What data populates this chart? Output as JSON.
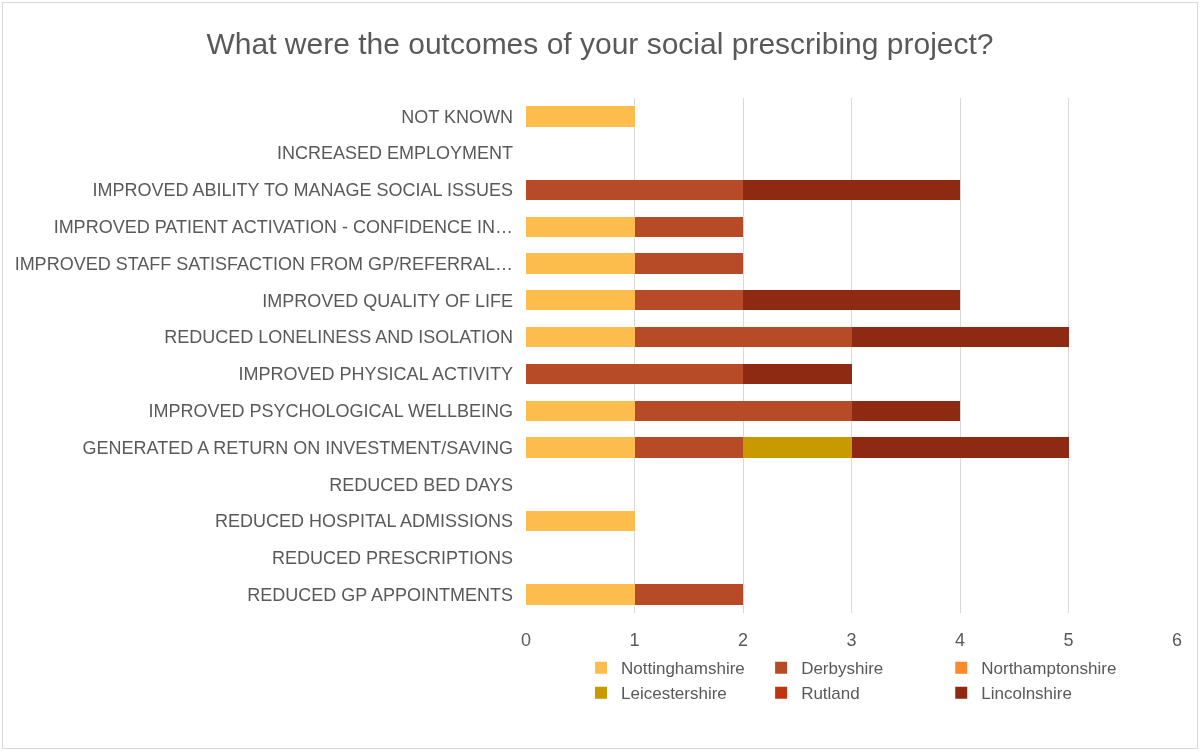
{
  "chart_data": {
    "type": "bar",
    "title": "What were the outcomes of your social prescribing project?",
    "orientation": "horizontal",
    "stacked": true,
    "categories": [
      "NOT KNOWN",
      "INCREASED EMPLOYMENT",
      "IMPROVED ABILITY TO MANAGE SOCIAL ISSUES",
      "IMPROVED PATIENT ACTIVATION - CONFIDENCE IN…",
      "IMPROVED STAFF SATISFACTION FROM GP/REFERRAL…",
      "IMPROVED QUALITY OF LIFE",
      "REDUCED LONELINESS AND ISOLATION",
      "IMPROVED PHYSICAL ACTIVITY",
      "IMPROVED PSYCHOLOGICAL WELLBEING",
      "GENERATED A RETURN ON INVESTMENT/SAVING",
      "REDUCED BED DAYS",
      "REDUCED HOSPITAL ADMISSIONS",
      "REDUCED PRESCRIPTIONS",
      "REDUCED GP APPOINTMENTS"
    ],
    "series": [
      {
        "name": "Nottinghamshire",
        "color": "#fdbd4c",
        "values": [
          1,
          0,
          0,
          1,
          1,
          1,
          1,
          0,
          1,
          1,
          0,
          1,
          0,
          1
        ]
      },
      {
        "name": "Derbyshire",
        "color": "#b84b27",
        "values": [
          0,
          0,
          2,
          1,
          1,
          1,
          2,
          2,
          2,
          1,
          0,
          0,
          0,
          1
        ]
      },
      {
        "name": "Northamptonshire",
        "color": "#f78b2c",
        "values": [
          0,
          0,
          0,
          0,
          0,
          0,
          0,
          0,
          0,
          0,
          0,
          0,
          0,
          0
        ]
      },
      {
        "name": "Leicestershire",
        "color": "#c89a00",
        "values": [
          0,
          0,
          0,
          0,
          0,
          0,
          0,
          0,
          0,
          1,
          0,
          0,
          0,
          0
        ]
      },
      {
        "name": "Rutland",
        "color": "#c2340f",
        "values": [
          0,
          0,
          0,
          0,
          0,
          0,
          0,
          0,
          0,
          0,
          0,
          0,
          0,
          0
        ]
      },
      {
        "name": "Lincolnshire",
        "color": "#8e2a12",
        "values": [
          0,
          0,
          2,
          0,
          0,
          2,
          2,
          1,
          1,
          2,
          0,
          0,
          0,
          0
        ]
      }
    ],
    "xlim": [
      0,
      6
    ],
    "xticks": [
      0,
      1,
      2,
      3,
      4,
      5,
      6
    ],
    "grid": "x",
    "legend": "bottom"
  }
}
